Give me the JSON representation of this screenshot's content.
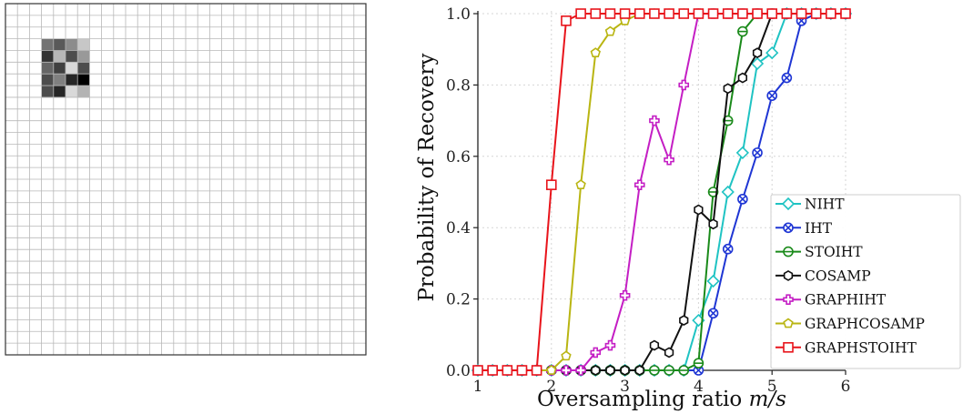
{
  "grid_image": {
    "rows": 30,
    "cols": 30,
    "block_origin": [
      3,
      3
    ],
    "block_gray": [
      [
        0.45,
        0.35,
        0.55,
        0.78
      ],
      [
        0.2,
        0.72,
        0.3,
        0.6
      ],
      [
        0.4,
        0.25,
        0.85,
        0.3
      ],
      [
        0.3,
        0.5,
        0.15,
        0.0
      ],
      [
        0.3,
        0.15,
        0.85,
        0.7
      ]
    ]
  },
  "chart_data": {
    "type": "line",
    "xlabel": "Oversampling ratio m/s",
    "ylabel": "Probability of Recovery",
    "xlim": [
      1,
      6
    ],
    "ylim": [
      0,
      1.0
    ],
    "xticks": [
      1,
      2,
      3,
      4,
      5,
      6
    ],
    "yticks": [
      0.0,
      0.2,
      0.4,
      0.6,
      0.8,
      1.0
    ],
    "ytick_labels": [
      "0.0",
      "0.2",
      "0.4",
      "0.6",
      "0.8",
      "1.0"
    ],
    "grid": true,
    "legend_position": "lower-right",
    "x": [
      1.0,
      1.2,
      1.4,
      1.6,
      1.8,
      2.0,
      2.2,
      2.4,
      2.6,
      2.8,
      3.0,
      3.2,
      3.4,
      3.6,
      3.8,
      4.0,
      4.2,
      4.4,
      4.6,
      4.8,
      5.0,
      5.2,
      5.4,
      5.6,
      5.8,
      6.0
    ],
    "series": [
      {
        "name": "NIHT",
        "color": "#1fc3c3",
        "marker": "diamond",
        "values": [
          0,
          0,
          0,
          0,
          0,
          0,
          0,
          0,
          0,
          0,
          0,
          0,
          0,
          0,
          0,
          0.14,
          0.25,
          0.5,
          0.61,
          0.86,
          0.89,
          1.0,
          1.0,
          1.0,
          1.0,
          1.0
        ]
      },
      {
        "name": "IHT",
        "color": "#1f36d4",
        "marker": "xcircle",
        "values": [
          0,
          0,
          0,
          0,
          0,
          0,
          0,
          0,
          0,
          0,
          0,
          0,
          0,
          0,
          0,
          0,
          0.16,
          0.34,
          0.48,
          0.61,
          0.77,
          0.82,
          0.98,
          1.0,
          1.0,
          1.0
        ]
      },
      {
        "name": "StoIHT",
        "color": "#1a8a1a",
        "marker": "circle-bar",
        "values": [
          0,
          0,
          0,
          0,
          0,
          0,
          0,
          0,
          0,
          0,
          0,
          0,
          0,
          0,
          0,
          0.02,
          0.5,
          0.7,
          0.95,
          1.0,
          1.0,
          1.0,
          1.0,
          1.0,
          1.0,
          1.0
        ]
      },
      {
        "name": "CoSaMP",
        "color": "#111111",
        "marker": "hexagon",
        "values": [
          0,
          0,
          0,
          0,
          0,
          0,
          0,
          0,
          0,
          0,
          0,
          0,
          0.07,
          0.05,
          0.14,
          0.45,
          0.41,
          0.79,
          0.82,
          0.89,
          1.0,
          1.0,
          1.0,
          1.0,
          1.0,
          1.0
        ]
      },
      {
        "name": "GraphIHT",
        "color": "#c41ec4",
        "marker": "plus",
        "values": [
          0,
          0,
          0,
          0,
          0,
          0,
          0,
          0,
          0.05,
          0.07,
          0.21,
          0.52,
          0.7,
          0.59,
          0.8,
          1.0,
          1.0,
          1.0,
          1.0,
          1.0,
          1.0,
          1.0,
          1.0,
          1.0,
          1.0,
          1.0
        ]
      },
      {
        "name": "GraphCoSaMP",
        "color": "#b9b512",
        "marker": "pentagon",
        "values": [
          0,
          0,
          0,
          0,
          0,
          0,
          0.04,
          0.52,
          0.89,
          0.95,
          0.98,
          1.0,
          1.0,
          1.0,
          1.0,
          1.0,
          1.0,
          1.0,
          1.0,
          1.0,
          1.0,
          1.0,
          1.0,
          1.0,
          1.0,
          1.0
        ]
      },
      {
        "name": "GraphStoIHT",
        "color": "#e8141b",
        "marker": "square",
        "values": [
          0,
          0,
          0,
          0,
          0,
          0.52,
          0.98,
          1.0,
          1.0,
          1.0,
          1.0,
          1.0,
          1.0,
          1.0,
          1.0,
          1.0,
          1.0,
          1.0,
          1.0,
          1.0,
          1.0,
          1.0,
          1.0,
          1.0,
          1.0,
          1.0
        ]
      }
    ],
    "legend_labels": [
      "NIHT",
      "IHT",
      "STOIHT",
      "COSAMP",
      "GRAPHIHT",
      "GRAPHCOSAMP",
      "GRAPHSTOIHT"
    ]
  }
}
